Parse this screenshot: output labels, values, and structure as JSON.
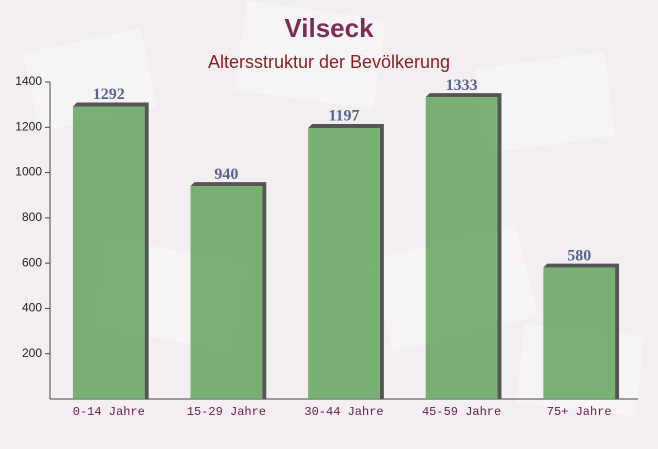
{
  "chart_data": {
    "type": "bar",
    "title": "Vilseck",
    "subtitle": "Altersstruktur der Bevölkerung",
    "categories": [
      "0-14 Jahre",
      "15-29 Jahre",
      "30-44 Jahre",
      "45-59 Jahre",
      "75+ Jahre"
    ],
    "values": [
      1292,
      940,
      1197,
      1333,
      580
    ],
    "color": "#6aa866",
    "ylim": [
      0,
      1400
    ],
    "yticks": [
      200,
      400,
      600,
      800,
      1000,
      1200,
      1400
    ]
  }
}
